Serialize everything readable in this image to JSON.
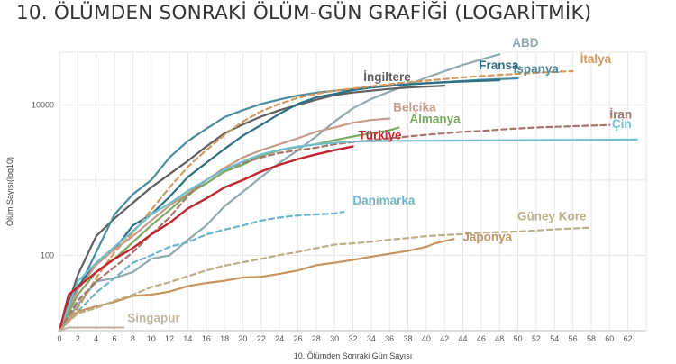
{
  "chart_data": {
    "type": "line",
    "title": "10. ÖLÜMDEN SONRAKİ ÖLÜM-GÜN GRAFİĞİ (LOGARİTMİK)",
    "xlabel": "10. Ölümden Sonraki Gün Sayısı",
    "ylabel": "Ölüm Sayısı(log10)",
    "y_scale": "log",
    "xlim": [
      0,
      64
    ],
    "ylim": [
      10,
      50000
    ],
    "x_ticks": [
      0,
      2,
      4,
      6,
      8,
      10,
      12,
      14,
      16,
      18,
      20,
      22,
      24,
      26,
      28,
      30,
      32,
      34,
      36,
      38,
      40,
      42,
      44,
      46,
      48,
      50,
      52,
      54,
      56,
      58,
      60,
      62
    ],
    "y_ticks": [
      {
        "value": 100,
        "label": "100"
      },
      {
        "value": 10000,
        "label": "10000"
      }
    ],
    "grid": true,
    "legend": "inline labels at line ends",
    "series": [
      {
        "name": "ABD",
        "color": "#8fa9ad",
        "dash": false,
        "x": [
          0,
          2,
          4,
          6,
          8,
          10,
          12,
          14,
          16,
          18,
          20,
          22,
          24,
          26,
          28,
          30,
          32,
          34,
          36,
          38,
          40,
          42,
          44,
          46,
          48
        ],
        "y": [
          10,
          22,
          45,
          50,
          60,
          90,
          100,
          160,
          250,
          450,
          700,
          1100,
          1700,
          2500,
          3800,
          6000,
          9000,
          12000,
          15000,
          18500,
          23000,
          28000,
          34000,
          40000,
          47000
        ]
      },
      {
        "name": "İngiltere",
        "color": "#5f5f5f",
        "dash": false,
        "x": [
          0,
          2,
          4,
          6,
          8,
          10,
          12,
          14,
          16,
          18,
          20,
          22,
          24,
          26,
          28,
          30,
          32,
          34,
          36,
          38,
          40,
          42
        ],
        "y": [
          10,
          55,
          180,
          310,
          500,
          800,
          1200,
          1800,
          2800,
          4200,
          5500,
          7000,
          8500,
          10000,
          11700,
          13500,
          14600,
          15400,
          16300,
          17000,
          17500,
          18000
        ]
      },
      {
        "name": "İspanya",
        "color": "#4d8b9e",
        "dash": false,
        "x": [
          0,
          2,
          4,
          6,
          8,
          10,
          12,
          14,
          16,
          18,
          20,
          22,
          24,
          26,
          28,
          30,
          32,
          34,
          36,
          38,
          40,
          42,
          44,
          46,
          48,
          50
        ],
        "y": [
          10,
          35,
          110,
          350,
          650,
          1000,
          2000,
          3300,
          4800,
          6900,
          8500,
          10300,
          11800,
          13300,
          14500,
          15400,
          16200,
          17200,
          18000,
          18800,
          19500,
          20100,
          20800,
          21500,
          22000,
          22500
        ]
      },
      {
        "name": "Fransa",
        "color": "#2d6f85",
        "dash": false,
        "x": [
          0,
          2,
          4,
          6,
          8,
          10,
          12,
          14,
          16,
          18,
          20,
          22,
          24,
          26,
          28,
          30,
          32,
          34,
          36,
          38,
          40,
          42,
          44,
          46,
          48
        ],
        "y": [
          10,
          38,
          80,
          120,
          250,
          350,
          600,
          1100,
          1700,
          2600,
          3900,
          5400,
          7600,
          10300,
          12600,
          14000,
          15700,
          17000,
          17900,
          18700,
          19300,
          19900,
          20400,
          20800,
          21300
        ]
      },
      {
        "name": "İtalya",
        "color": "#d09b62",
        "dash": true,
        "x": [
          0,
          2,
          4,
          6,
          8,
          10,
          12,
          14,
          16,
          18,
          20,
          22,
          24,
          26,
          28,
          30,
          32,
          34,
          36,
          38,
          40,
          42,
          44,
          46,
          48,
          50,
          52,
          54,
          56
        ],
        "y": [
          10,
          20,
          50,
          110,
          200,
          400,
          800,
          1500,
          2500,
          4000,
          6000,
          8200,
          10300,
          12400,
          14000,
          15400,
          16500,
          17600,
          18800,
          20000,
          21000,
          22000,
          23200,
          24100,
          25000,
          25900,
          26600,
          27400,
          28000
        ]
      },
      {
        "name": "Belçika",
        "color": "#c79b87",
        "dash": false,
        "x": [
          0,
          2,
          4,
          6,
          8,
          10,
          12,
          14,
          16,
          18,
          20,
          22,
          24,
          26,
          28,
          30,
          32,
          34,
          36
        ],
        "y": [
          10,
          35,
          75,
          120,
          180,
          290,
          460,
          660,
          1000,
          1450,
          2000,
          2500,
          3000,
          3600,
          4400,
          5000,
          5800,
          6300,
          6600
        ]
      },
      {
        "name": "Almanya",
        "color": "#7caa63",
        "dash": false,
        "x": [
          0,
          2,
          4,
          6,
          8,
          10,
          12,
          14,
          16,
          18,
          20,
          22,
          24,
          26,
          28,
          30,
          32,
          34,
          36,
          37
        ],
        "y": [
          10,
          30,
          60,
          90,
          150,
          250,
          400,
          650,
          900,
          1300,
          1600,
          2100,
          2500,
          2750,
          3000,
          3400,
          3800,
          4200,
          4600,
          5000
        ]
      },
      {
        "name": "İran",
        "color": "#a7756a",
        "dash": true,
        "x": [
          0,
          2,
          4,
          6,
          8,
          10,
          12,
          14,
          16,
          18,
          20,
          22,
          24,
          26,
          28,
          30,
          32,
          34,
          36,
          38,
          40,
          42,
          44,
          46,
          48,
          50,
          52,
          54,
          56,
          58,
          60
        ],
        "y": [
          10,
          25,
          45,
          70,
          110,
          190,
          320,
          620,
          1000,
          1400,
          1700,
          2000,
          2300,
          2500,
          2700,
          3000,
          3200,
          3400,
          3600,
          3800,
          4000,
          4200,
          4400,
          4500,
          4700,
          4850,
          5000,
          5100,
          5200,
          5300,
          5400
        ]
      },
      {
        "name": "Çin",
        "color": "#74bfcf",
        "dash": false,
        "x": [
          0,
          2,
          4,
          6,
          8,
          10,
          12,
          14,
          16,
          18,
          20,
          22,
          24,
          26,
          28,
          30,
          32,
          34,
          36,
          38,
          40,
          42,
          44,
          46,
          48,
          50,
          52,
          54,
          56,
          58,
          60,
          62,
          63
        ],
        "y": [
          10,
          45,
          80,
          130,
          210,
          350,
          490,
          720,
          1000,
          1380,
          1770,
          2200,
          2530,
          2800,
          2980,
          3130,
          3250,
          3300,
          3320,
          3330,
          3340,
          3350,
          3360,
          3370,
          3380,
          3390,
          3400,
          3410,
          3420,
          3430,
          3440,
          3450,
          3460
        ]
      },
      {
        "name": "Türkiye",
        "color": "#c0262d",
        "dash": false,
        "x": [
          0,
          1,
          2,
          4,
          6,
          8,
          10,
          12,
          14,
          16,
          18,
          20,
          22,
          24,
          26,
          28,
          30,
          32
        ],
        "y": [
          10,
          30,
          38,
          60,
          90,
          125,
          190,
          270,
          420,
          570,
          800,
          1000,
          1300,
          1600,
          1900,
          2200,
          2500,
          2800
        ]
      },
      {
        "name": "Danimarka",
        "color": "#6fb5c9",
        "dash": true,
        "x": [
          0,
          2,
          4,
          6,
          8,
          10,
          12,
          14,
          16,
          18,
          20,
          22,
          24,
          26,
          28,
          30,
          31
        ],
        "y": [
          10,
          18,
          32,
          50,
          80,
          100,
          130,
          150,
          190,
          220,
          250,
          290,
          320,
          340,
          350,
          360,
          380
        ]
      },
      {
        "name": "Japonya",
        "color": "#c79460",
        "dash": false,
        "x": [
          0,
          2,
          4,
          6,
          8,
          10,
          12,
          14,
          16,
          18,
          20,
          22,
          24,
          26,
          28,
          30,
          32,
          34,
          36,
          38,
          40,
          41,
          42,
          43
        ],
        "y": [
          10,
          18,
          21,
          24,
          29,
          30,
          33,
          39,
          43,
          46,
          51,
          52,
          57,
          63,
          74,
          80,
          87,
          96,
          105,
          115,
          130,
          145,
          155,
          165
        ]
      },
      {
        "name": "Güney Kore",
        "color": "#b9b086",
        "dash": true,
        "x": [
          0,
          2,
          4,
          6,
          8,
          10,
          12,
          14,
          16,
          18,
          20,
          22,
          24,
          26,
          28,
          30,
          32,
          34,
          36,
          38,
          40,
          42,
          44,
          46,
          48,
          50,
          52,
          54,
          56,
          58
        ],
        "y": [
          10,
          17,
          20,
          25,
          30,
          38,
          44,
          53,
          63,
          73,
          81,
          90,
          101,
          111,
          125,
          139,
          144,
          152,
          162,
          170,
          180,
          186,
          192,
          200,
          204,
          208,
          214,
          222,
          228,
          234
        ]
      },
      {
        "name": "Singapur",
        "color": "#c0b7a4",
        "dash": false,
        "x": [
          0,
          1,
          2,
          4,
          6,
          7
        ],
        "y": [
          10,
          11,
          11,
          11,
          11,
          11
        ]
      }
    ]
  }
}
